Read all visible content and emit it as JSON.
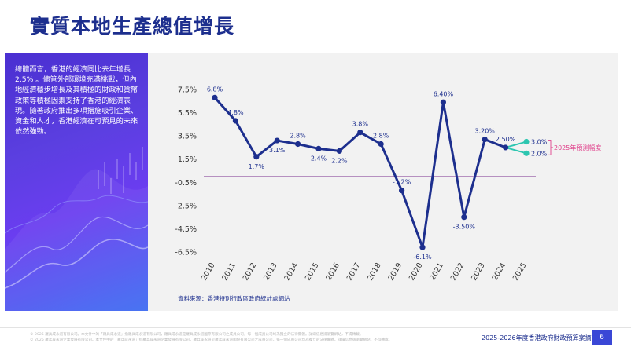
{
  "page": {
    "title": "實質本地生產總值增長",
    "summary": "總體而言，香港的經濟同比去年增長2.5% 。儘管外部環境充滿挑戰，但內地經濟穩步增長及其積極的財政和貨幣政策等積極因素支持了香港的經濟表現。隨著政府推出多項措施吸引企業、資金和人才，香港經濟在可預見的未來依然強勁。",
    "source": "資料來源：香港特別行政區政府統計處網站",
    "footer_line1": "© 2025 羅兵咸永道有限公司。本文件中的「羅兵咸永道」指羅兵咸永道有限公司，羅兵咸永道是羅兵咸永道國際有限公司之成員公司，每一個成員公司均為獨立的法律實體。詳細信息請瀏覽網站，不得轉載。",
    "footer_line2": "© 2025 羅兵咸永道企業發展有限公司。本文件中的「羅兵咸永道」指羅兵咸永道企業發展有限公司，羅兵咸永道是羅兵咸永道國際有限公司之成員公司，每一個成員公司均為獨立的法律實體。詳細信息請瀏覽網站，不得轉載。",
    "footer_title": "2025-2026年度香港政府財政預算案摘要",
    "page_number": "6"
  },
  "colors": {
    "title": "#1d2f8e",
    "line": "#1d2f8e",
    "forecast": "#2cc6b0",
    "zero_line": "#7b2d8e",
    "bracket": "#e0408b",
    "panel_start": "#4a2fd1",
    "panel_end": "#3d6cf2"
  },
  "chart_data": {
    "type": "line",
    "categories": [
      "2010",
      "2011",
      "2012",
      "2013",
      "2014",
      "2015",
      "2016",
      "2017",
      "2018",
      "2019",
      "2020",
      "2021",
      "2022",
      "2023",
      "2024",
      "2025"
    ],
    "ylim": [
      -6.5,
      7.5
    ],
    "yticks": [
      "7.5%",
      "5.5%",
      "3.5%",
      "1.5%",
      "-0.5%",
      "-2.5%",
      "-4.5%",
      "-6.5%"
    ],
    "ytick_values": [
      7.5,
      5.5,
      3.5,
      1.5,
      -0.5,
      -2.5,
      -4.5,
      -6.5
    ],
    "grid": false,
    "series": [
      {
        "x": [
          "2010",
          "2011",
          "2012",
          "2013",
          "2014",
          "2015",
          "2016",
          "2017",
          "2018",
          "2019",
          "2020",
          "2021",
          "2022",
          "2023",
          "2024"
        ],
        "values": [
          6.8,
          4.8,
          1.7,
          3.1,
          2.8,
          2.4,
          2.2,
          3.8,
          2.8,
          -1.2,
          -6.1,
          6.4,
          -3.5,
          3.2,
          2.5
        ],
        "labels": [
          "6.8%",
          "4.8%",
          "1.7%",
          "3.1%",
          "2.8%",
          "2.4%",
          "2.2%",
          "3.8%",
          "2.8%",
          "-1.2%",
          "-6.1%",
          "6.40%",
          "-3.50%",
          "3.20%",
          "2.50%"
        ],
        "label_pos": [
          "above",
          "above",
          "below",
          "below",
          "above",
          "below",
          "below",
          "above",
          "above",
          "above",
          "below",
          "above",
          "below",
          "above",
          "above"
        ]
      }
    ],
    "forecast": {
      "from_x": "2024",
      "from_value": 2.5,
      "x": "2025",
      "values": [
        3.0,
        2.0
      ],
      "labels": [
        "3.0%",
        "2.0%"
      ],
      "bracket_label": "2025年預測幅度"
    },
    "reference_line": 0
  }
}
